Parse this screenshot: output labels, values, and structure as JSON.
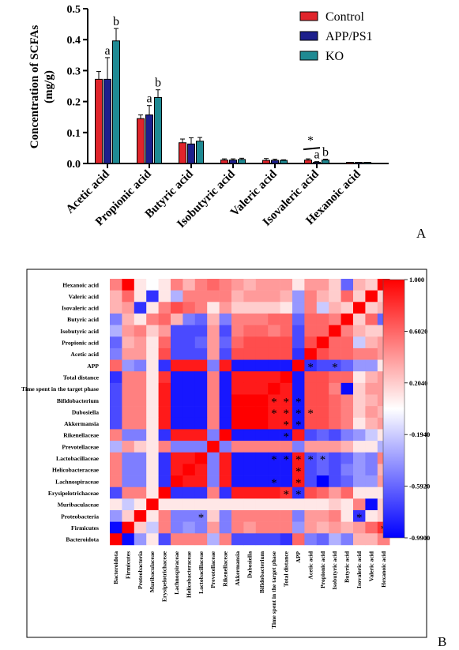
{
  "colors": {
    "control": "#e0242b",
    "app": "#1d1f8c",
    "ko": "#1f8a93",
    "heat_high": "#ff0000",
    "heat_mid": "#ffffff",
    "heat_low": "#0000ff"
  },
  "chart_data": [
    {
      "type": "bar",
      "panel": "A",
      "categories": [
        "Acetic acid",
        "Propionic acid",
        "Butyric acid",
        "Isobutyric acid",
        "Valeric acid",
        "Isovaleric acid",
        "Hexanoic acid"
      ],
      "series": [
        {
          "name": "Control",
          "values": [
            0.272,
            0.145,
            0.067,
            0.011,
            0.01,
            0.011,
            0.0
          ],
          "errors": [
            0.025,
            0.012,
            0.012,
            0.004,
            0.006,
            0.004,
            0.0
          ]
        },
        {
          "name": "APP/PS1",
          "values": [
            0.272,
            0.157,
            0.063,
            0.011,
            0.01,
            0.004,
            0.0
          ],
          "errors": [
            0.07,
            0.03,
            0.02,
            0.004,
            0.004,
            0.002,
            0.0
          ]
        },
        {
          "name": "KO",
          "values": [
            0.396,
            0.213,
            0.072,
            0.013,
            0.01,
            0.011,
            0.0
          ],
          "errors": [
            0.04,
            0.025,
            0.012,
            0.004,
            0.002,
            0.003,
            0.0
          ]
        }
      ],
      "ylabel": "Concentration of SCFAs\n(mg/g)",
      "yticks": [
        "0.0",
        "0.1",
        "0.2",
        "0.3",
        "0.4",
        "0.5"
      ],
      "ylim": [
        0,
        0.5
      ],
      "legend_position": "top-right",
      "annotations": [
        {
          "text": "a",
          "category": "Acetic acid",
          "series": "APP/PS1"
        },
        {
          "text": "b",
          "category": "Acetic acid",
          "series": "KO"
        },
        {
          "text": "a",
          "category": "Propionic acid",
          "series": "APP/PS1"
        },
        {
          "text": "b",
          "category": "Propionic acid",
          "series": "KO"
        },
        {
          "text": "*",
          "category": "Isovaleric acid",
          "series": "Control",
          "bracket": true
        },
        {
          "text": "a",
          "category": "Isovaleric acid",
          "series": "APP/PS1"
        },
        {
          "text": "b",
          "category": "Isovaleric acid",
          "series": "KO"
        }
      ],
      "panel_label": "A"
    },
    {
      "type": "heatmap",
      "panel": "B",
      "row_labels": [
        "Hexanoic acid",
        "Valeric acid",
        "Isovaleric acid",
        "Butyric acid",
        "Isobutyric acid",
        "Propionic acid",
        "Acetic acid",
        "APP",
        "Total distance",
        "Time spent in the target phase",
        "Bifidobacterium",
        "Dubosiella",
        "Akkermansia",
        "Rikenellaceae",
        "Prevotellaceae",
        "Lactobacillaceae",
        "Helicobacteraceae",
        "Lachnospiraceae",
        "Erysipelotrichaceae",
        "Muribaculaceae",
        "Proteobacteria",
        "Firmicutes",
        "Bacteroidota"
      ],
      "col_labels": [
        "Bacteroidota",
        "Firmicutes",
        "Proteobacteria",
        "Muribaculaceae",
        "Erysipelotrichaceae",
        "Lachnospiraceae",
        "Helicobacteraceae",
        "Lactobacillaceae",
        "Prevotellaceae",
        "Rikenellaceae",
        "Akkermansia",
        "Dubosiella",
        "Bifidobacterium",
        "Time spent in the target phase",
        "Total distance",
        "APP",
        "Acetic acid",
        "Propionic acid",
        "Isobutyric acid",
        "Butyric acid",
        "Isovaleric acid",
        "Valeric acid",
        "Hexanoic acid"
      ],
      "values": [
        [
          0.5,
          1.0,
          0.1,
          0.0,
          0.1,
          0.5,
          0.3,
          0.5,
          0.6,
          0.5,
          0.4,
          0.3,
          0.4,
          0.4,
          0.4,
          0.1,
          0.4,
          0.4,
          0.2,
          -0.6,
          0.3,
          0.2,
          1.0
        ],
        [
          0.3,
          0.6,
          0.1,
          -0.8,
          0.1,
          -0.3,
          0.5,
          0.5,
          0.5,
          0.5,
          0.3,
          0.4,
          0.4,
          0.4,
          0.3,
          -0.4,
          0.5,
          0.3,
          0.2,
          0.6,
          0.2,
          1.0,
          0.2
        ],
        [
          0.3,
          0.4,
          -0.8,
          0.1,
          0.5,
          0.7,
          0.6,
          0.5,
          0.1,
          0.4,
          0.2,
          0.2,
          0.2,
          0.2,
          0.1,
          -0.4,
          0.5,
          -0.2,
          0.3,
          0.2,
          1.0,
          0.2,
          0.3
        ],
        [
          -0.5,
          0.3,
          0.1,
          0.5,
          0.6,
          0.3,
          -0.5,
          -0.6,
          0.3,
          -0.5,
          0.5,
          0.5,
          0.5,
          0.6,
          0.6,
          -0.6,
          0.6,
          0.6,
          0.5,
          1.0,
          0.2,
          0.6,
          -0.6
        ],
        [
          -0.3,
          0.4,
          0.5,
          0.2,
          0.4,
          -0.7,
          -0.7,
          -0.7,
          0.4,
          -0.7,
          0.5,
          0.6,
          0.6,
          0.5,
          0.6,
          -0.7,
          0.6,
          0.6,
          1.0,
          0.5,
          0.3,
          0.2,
          0.2
        ],
        [
          -0.6,
          0.3,
          0.4,
          0.1,
          0.6,
          -0.7,
          -0.7,
          -0.6,
          0.4,
          -0.6,
          0.6,
          0.7,
          0.7,
          0.7,
          0.7,
          -0.7,
          0.7,
          1.0,
          0.6,
          0.6,
          -0.2,
          0.3,
          0.4
        ],
        [
          -0.5,
          0.4,
          0.4,
          0.1,
          0.7,
          -0.7,
          -0.7,
          -0.7,
          0.4,
          -0.7,
          0.7,
          0.7,
          0.7,
          0.7,
          0.7,
          -0.8,
          1.0,
          0.7,
          0.6,
          0.6,
          0.5,
          0.5,
          0.4
        ],
        [
          0.6,
          -0.4,
          -0.5,
          0.1,
          -0.8,
          0.9,
          0.9,
          0.9,
          -0.5,
          0.9,
          -0.9,
          -0.9,
          -0.9,
          -0.9,
          -0.9,
          1.0,
          -0.8,
          -0.7,
          -0.7,
          -0.6,
          -0.4,
          -0.4,
          0.1
        ],
        [
          -0.8,
          0.5,
          0.5,
          0.1,
          0.8,
          -0.9,
          -0.9,
          -0.9,
          0.5,
          -0.9,
          0.9,
          0.9,
          0.9,
          0.9,
          1.0,
          -0.9,
          0.7,
          0.7,
          0.6,
          0.6,
          0.1,
          0.3,
          0.4
        ],
        [
          -0.7,
          0.5,
          0.5,
          0.1,
          0.9,
          -0.9,
          -0.9,
          -0.9,
          0.5,
          -0.9,
          0.9,
          0.9,
          0.9,
          1.0,
          0.9,
          -0.9,
          0.7,
          0.7,
          0.5,
          -0.95,
          0.2,
          0.4,
          0.4
        ],
        [
          -0.7,
          0.5,
          0.5,
          0.1,
          0.9,
          -0.9,
          -0.9,
          -0.9,
          0.5,
          -0.9,
          1.0,
          1.0,
          1.0,
          0.9,
          0.9,
          -0.9,
          0.7,
          0.7,
          0.6,
          0.5,
          0.2,
          0.3,
          0.4
        ],
        [
          -0.7,
          0.5,
          0.5,
          0.1,
          0.9,
          -0.9,
          -0.9,
          -0.9,
          0.5,
          -0.9,
          1.0,
          1.0,
          1.0,
          0.9,
          0.9,
          -0.9,
          0.7,
          0.7,
          0.6,
          0.5,
          0.2,
          0.4,
          0.3
        ],
        [
          -0.7,
          0.5,
          0.5,
          0.1,
          0.9,
          -0.9,
          -0.9,
          -0.9,
          0.5,
          -0.9,
          1.0,
          1.0,
          1.0,
          0.9,
          0.9,
          -0.9,
          0.7,
          0.7,
          0.6,
          0.5,
          0.1,
          0.3,
          0.4
        ],
        [
          0.5,
          -0.5,
          -0.5,
          0.1,
          -0.8,
          0.9,
          0.9,
          0.9,
          -0.5,
          1.0,
          -0.9,
          -0.9,
          -0.9,
          -0.9,
          -0.9,
          0.9,
          -0.7,
          -0.6,
          -0.7,
          -0.5,
          -0.4,
          -0.2,
          0.1
        ],
        [
          -0.3,
          0.4,
          0.2,
          0.1,
          0.5,
          -0.5,
          -0.5,
          -0.5,
          1.0,
          -0.5,
          0.5,
          0.5,
          0.5,
          0.5,
          0.5,
          -0.5,
          0.4,
          0.4,
          0.4,
          0.3,
          0.1,
          0.1,
          -0.3
        ],
        [
          0.5,
          -0.5,
          -0.5,
          0.1,
          -0.8,
          0.9,
          0.9,
          1.0,
          -0.5,
          0.9,
          -0.9,
          -0.9,
          -0.9,
          -0.9,
          -0.9,
          0.9,
          -0.7,
          -0.6,
          -0.7,
          -0.6,
          -0.4,
          -0.5,
          0.5
        ],
        [
          0.5,
          -0.5,
          -0.5,
          0.1,
          -0.8,
          0.9,
          1.0,
          0.9,
          -0.5,
          0.9,
          -0.9,
          -0.9,
          -0.9,
          -0.9,
          -0.9,
          0.9,
          -0.7,
          -0.6,
          -0.7,
          -0.5,
          -0.4,
          -0.5,
          0.3
        ],
        [
          0.5,
          -0.5,
          -0.5,
          0.1,
          -0.8,
          1.0,
          0.9,
          0.9,
          -0.5,
          0.9,
          -0.9,
          -0.9,
          -0.9,
          -0.9,
          -0.9,
          0.9,
          -0.7,
          -1.0,
          -0.7,
          -0.6,
          -0.4,
          -0.4,
          0.4
        ],
        [
          -0.7,
          0.5,
          0.5,
          0.1,
          1.0,
          -0.8,
          -0.8,
          -0.8,
          0.5,
          -0.8,
          0.9,
          0.9,
          0.9,
          0.9,
          0.8,
          -0.8,
          0.7,
          0.6,
          0.4,
          0.6,
          0.1,
          0.1,
          0.1
        ],
        [
          0.1,
          -0.2,
          0.1,
          1.0,
          0.1,
          0.1,
          0.1,
          0.1,
          0.1,
          0.1,
          0.1,
          0.1,
          0.1,
          0.1,
          0.1,
          0.1,
          0.1,
          0.1,
          0.2,
          0.1,
          0.5,
          -0.95,
          0.2
        ],
        [
          -0.4,
          0.2,
          1.0,
          0.1,
          0.5,
          -0.5,
          -0.5,
          -0.5,
          0.2,
          -0.5,
          0.5,
          0.5,
          0.5,
          0.5,
          0.5,
          -0.5,
          0.4,
          0.4,
          0.5,
          0.1,
          -0.8,
          0.1,
          0.2
        ],
        [
          -0.95,
          1.0,
          0.2,
          -0.2,
          0.5,
          -0.5,
          -0.4,
          -0.5,
          0.4,
          -0.5,
          0.5,
          0.4,
          0.5,
          0.5,
          0.5,
          -0.4,
          0.4,
          0.3,
          0.4,
          0.3,
          0.4,
          0.6,
          0.8
        ],
        [
          1.0,
          -0.95,
          -0.4,
          0.1,
          -0.7,
          0.5,
          0.5,
          0.5,
          -0.3,
          0.5,
          -0.7,
          -0.7,
          -0.7,
          -0.7,
          -0.8,
          0.6,
          -0.5,
          -0.6,
          -0.3,
          -0.5,
          0.3,
          0.3,
          0.5
        ]
      ],
      "significance": [
        {
          "row": "Bifidobacterium",
          "col": "Time spent in the target phase",
          "mark": "*"
        },
        {
          "row": "Bifidobacterium",
          "col": "Total distance",
          "mark": "*"
        },
        {
          "row": "Bifidobacterium",
          "col": "APP",
          "mark": "*"
        },
        {
          "row": "Dubosiella",
          "col": "Time spent in the target phase",
          "mark": "*"
        },
        {
          "row": "Dubosiella",
          "col": "Total distance",
          "mark": "*"
        },
        {
          "row": "Dubosiella",
          "col": "APP",
          "mark": "*"
        },
        {
          "row": "Dubosiella",
          "col": "Acetic acid",
          "mark": "*"
        },
        {
          "row": "Akkermansia",
          "col": "Total distance",
          "mark": "*"
        },
        {
          "row": "Akkermansia",
          "col": "APP",
          "mark": "*"
        },
        {
          "row": "Rikenellaceae",
          "col": "Total distance",
          "mark": "*"
        },
        {
          "row": "APP",
          "col": "Acetic acid",
          "mark": "*"
        },
        {
          "row": "APP",
          "col": "Isobutyric acid",
          "mark": "*"
        },
        {
          "row": "Lactobacillaceae",
          "col": "Time spent in the target phase",
          "mark": "*"
        },
        {
          "row": "Lactobacillaceae",
          "col": "Total distance",
          "mark": "*"
        },
        {
          "row": "Lactobacillaceae",
          "col": "APP",
          "mark": "*"
        },
        {
          "row": "Lactobacillaceae",
          "col": "Acetic acid",
          "mark": "*"
        },
        {
          "row": "Lactobacillaceae",
          "col": "Propionic acid",
          "mark": "*"
        },
        {
          "row": "Helicobacteraceae",
          "col": "APP",
          "mark": "*"
        },
        {
          "row": "Lachnospiraceae",
          "col": "Time spent in the target phase",
          "mark": "*"
        },
        {
          "row": "Lachnospiraceae",
          "col": "APP",
          "mark": "*"
        },
        {
          "row": "Erysipelotrichaceae",
          "col": "Total distance",
          "mark": "*"
        },
        {
          "row": "Erysipelotrichaceae",
          "col": "APP",
          "mark": "*"
        },
        {
          "row": "Proteobacteria",
          "col": "Lactobacillaceae",
          "mark": "*"
        },
        {
          "row": "Proteobacteria",
          "col": "Isovaleric acid",
          "mark": "*"
        },
        {
          "row": "Firmicutes",
          "col": "Hexanoic acid",
          "mark": "*"
        }
      ],
      "colorbar_ticks": [
        "1.000",
        "0.6020",
        "0.2040",
        "-0.1940",
        "-0.5920",
        "-0.9900"
      ],
      "vmin": -0.99,
      "vmax": 1.0,
      "panel_label": "B"
    }
  ]
}
